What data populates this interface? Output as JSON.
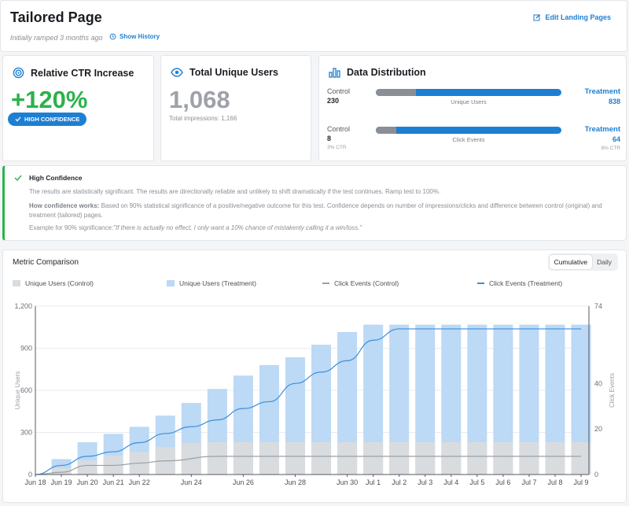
{
  "header": {
    "title": "Tailored Page",
    "ramp_text": "Initially ramped 3 months ago",
    "show_history": "Show History",
    "edit_landing": "Edit Landing Pages"
  },
  "ctr": {
    "title": "Relative CTR Increase",
    "value": "+120%",
    "badge": "HIGH CONFIDENCE"
  },
  "users": {
    "title": "Total Unique Users",
    "value": "1,068",
    "sub": "Total impressions: 1,166"
  },
  "distribution": {
    "title": "Data Distribution",
    "rows": [
      {
        "control_label": "Control",
        "control_value": "230",
        "control_ctr": "",
        "metric": "Unique Users",
        "treatment_label": "Treatment",
        "treatment_value": "838",
        "treatment_ctr": "",
        "control_fraction": 0.215
      },
      {
        "control_label": "Control",
        "control_value": "8",
        "control_ctr": "3% CTR",
        "metric": "Click Events",
        "treatment_label": "Treatment",
        "treatment_value": "64",
        "treatment_ctr": "8% CTR",
        "control_fraction": 0.111
      }
    ]
  },
  "confidence": {
    "title": "High Confidence",
    "p1": "The results are statistically significant. The results are directionally reliable and unlikely to shift dramatically if the test continues. Ramp test to 100%.",
    "p2_bold": "How confidence works:",
    "p2": " Based on 90% statistical significance of a positive/negative outcome for this test. Confidence depends on number of impressions/clicks and difference between control (original) and treatment (tailored) pages.",
    "p3_prefix": "Example for 90% significance:",
    "p3_quote": "\"If there is actually no effect, I only want a 10% chance of mistakenly calling it a win/loss.\""
  },
  "chart": {
    "title": "Metric Comparison",
    "toggle": [
      "Cumulative",
      "Daily"
    ],
    "active_toggle": "Cumulative",
    "legend": [
      {
        "label": "Unique Users (Control)",
        "kind": "box",
        "color": "#d9dcdf"
      },
      {
        "label": "Unique Users (Treatment)",
        "kind": "box",
        "color": "#bcd9f5"
      },
      {
        "label": "Click Events (Control)",
        "kind": "line",
        "color": "#9aa0a6"
      },
      {
        "label": "Click Events (Treatment)",
        "kind": "line",
        "color": "#3d8fd8"
      }
    ]
  },
  "colors": {
    "accent_blue": "#1d7fd3",
    "success_green": "#2cb24b",
    "control_gray": "#8a8f96"
  },
  "chart_data": {
    "type": "bar",
    "ylabel": "Unique Users",
    "y2label": "Click Events",
    "ylim": [
      0,
      1200
    ],
    "y2lim": [
      0,
      74
    ],
    "yticks": [
      "0",
      "300",
      "600",
      "900",
      "1,200"
    ],
    "y2ticks": [
      "0",
      "20",
      "40",
      "74"
    ],
    "y2tick_values": [
      0,
      20,
      40,
      74
    ],
    "x_tick_labels": [
      "Jun 18",
      "Jun 19",
      "Jun 20",
      "Jun 21",
      "Jun 22",
      "Jun 24",
      "Jun 26",
      "Jun 28",
      "Jun 30",
      "Jul 1",
      "Jul 2",
      "Jul 3",
      "Jul 4",
      "Jul 5",
      "Jul 6",
      "Jul 7",
      "Jul 8",
      "Jul 9"
    ],
    "bar_dates": [
      "Jun 19",
      "Jun 20",
      "Jun 21",
      "Jun 22",
      "Jun 23",
      "Jun 24",
      "Jun 25",
      "Jun 26",
      "Jun 27",
      "Jun 28",
      "Jun 29",
      "Jun 30",
      "Jul 1",
      "Jul 2",
      "Jul 3",
      "Jul 4",
      "Jul 5",
      "Jul 6",
      "Jul 7",
      "Jul 8",
      "Jul 9"
    ],
    "series": [
      {
        "name": "Unique Users (Control)",
        "values": [
          45,
          100,
          135,
          160,
          195,
          225,
          230,
          230,
          230,
          230,
          230,
          230,
          230,
          230,
          230,
          230,
          230,
          230,
          230,
          230,
          230
        ]
      },
      {
        "name": "Unique Users (Treatment)",
        "values": [
          110,
          230,
          290,
          340,
          420,
          510,
          610,
          705,
          780,
          835,
          925,
          1015,
          1068,
          1068,
          1068,
          1068,
          1068,
          1068,
          1068,
          1068,
          1068
        ]
      },
      {
        "name": "Click Events (Control)",
        "points": [
          [
            0,
            0
          ],
          [
            1,
            1
          ],
          [
            2,
            4
          ],
          [
            3,
            4
          ],
          [
            4,
            5
          ],
          [
            5,
            6
          ],
          [
            7,
            8
          ],
          [
            9,
            8
          ],
          [
            21,
            8
          ]
        ]
      },
      {
        "name": "Click Events (Treatment)",
        "points": [
          [
            0,
            0
          ],
          [
            1,
            4
          ],
          [
            2,
            8
          ],
          [
            3,
            10
          ],
          [
            4,
            14
          ],
          [
            5,
            18
          ],
          [
            6,
            21
          ],
          [
            7,
            24
          ],
          [
            8,
            29
          ],
          [
            9,
            32
          ],
          [
            10,
            40
          ],
          [
            11,
            45
          ],
          [
            12,
            50
          ],
          [
            13,
            59
          ],
          [
            14,
            64
          ],
          [
            15,
            64
          ],
          [
            21,
            64
          ]
        ]
      }
    ]
  }
}
